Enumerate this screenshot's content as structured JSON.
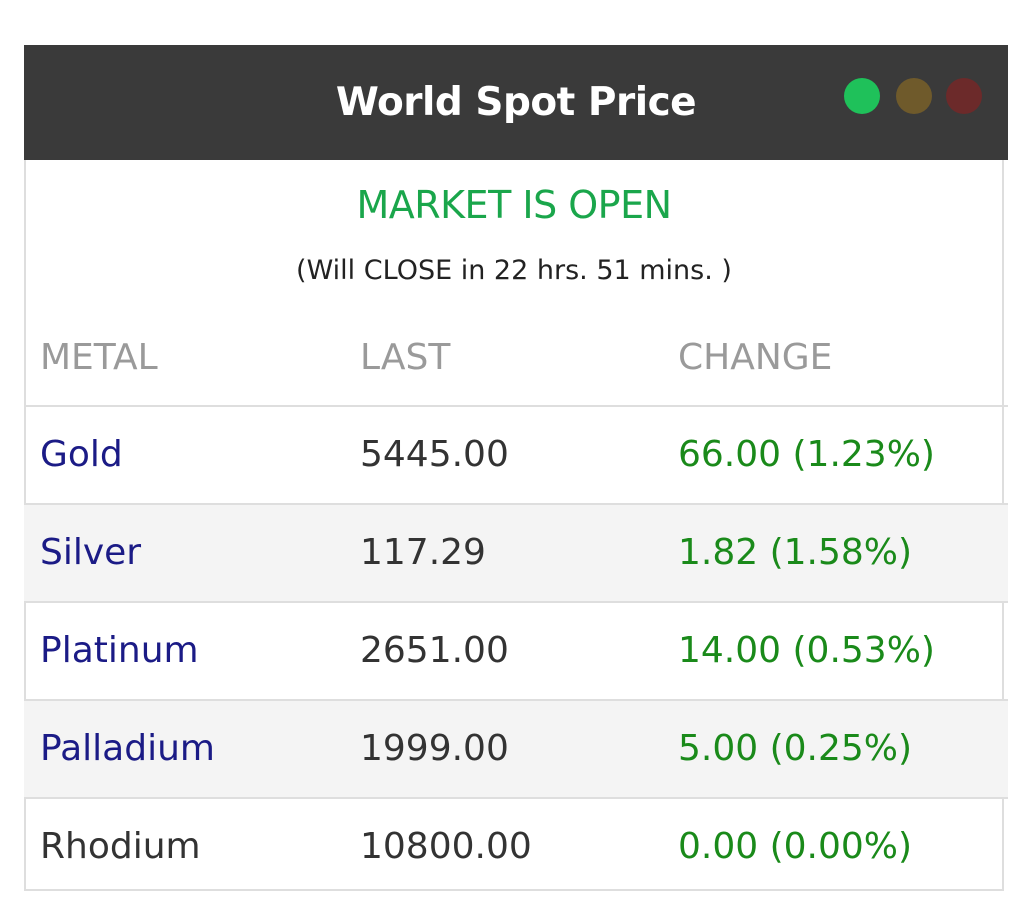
{
  "widget": {
    "title": "World Spot Price",
    "window_dots": [
      {
        "name": "green",
        "color": "#1fc15a"
      },
      {
        "name": "olive",
        "color": "#6f5a2b"
      },
      {
        "name": "red",
        "color": "#6c2a2a"
      }
    ]
  },
  "market": {
    "status": "MARKET IS OPEN",
    "countdown": "(Will CLOSE in 22 hrs. 51 mins. )"
  },
  "table": {
    "headers": {
      "metal": "METAL",
      "last": "LAST",
      "change": "CHANGE"
    },
    "rows": [
      {
        "metal": "Gold",
        "last": "5445.00",
        "change": "66.00 (1.23%)"
      },
      {
        "metal": "Silver",
        "last": "117.29",
        "change": "1.82 (1.58%)"
      },
      {
        "metal": "Platinum",
        "last": "2651.00",
        "change": "14.00 (0.53%)"
      },
      {
        "metal": "Palladium",
        "last": "1999.00",
        "change": "5.00 (0.25%)"
      },
      {
        "metal": "Rhodium",
        "last": "10800.00",
        "change": "0.00 (0.00%)"
      }
    ]
  },
  "colors": {
    "header_bg": "#3a3a3a",
    "status_green": "#1aa64b",
    "change_green": "#1a8a1a",
    "metal_link": "#1b1b86",
    "header_gray": "#9a9a9a"
  }
}
